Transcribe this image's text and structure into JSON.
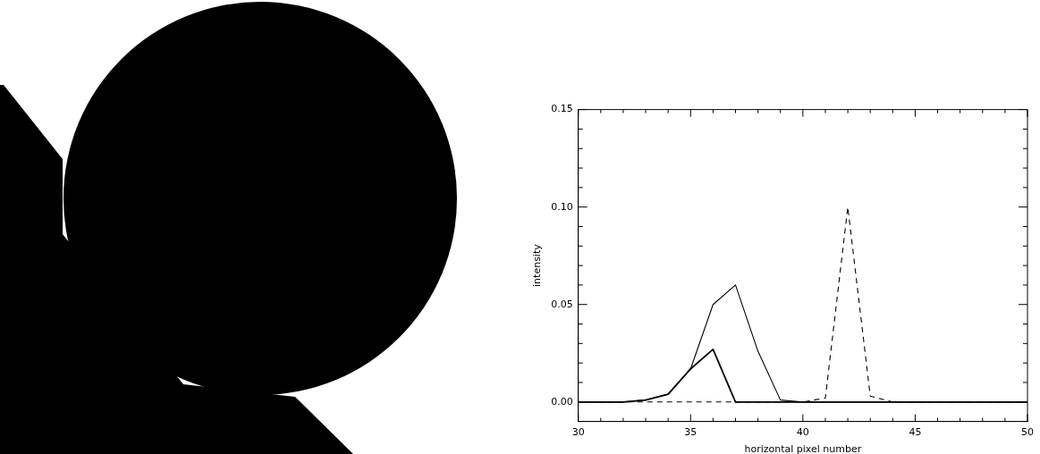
{
  "chart_data": {
    "type": "line",
    "xlabel": "horizontal pixel number",
    "ylabel": "intensity",
    "x": [
      30,
      31,
      32,
      33,
      34,
      35,
      36,
      37,
      38,
      39,
      40,
      41,
      42,
      43,
      44,
      45,
      46,
      47,
      48,
      49,
      50
    ],
    "series": [
      {
        "color": "#000000",
        "line_style": "solid",
        "values": [
          0,
          0,
          0,
          0.001,
          0.004,
          0.017,
          0.05,
          0.06,
          0.026,
          0.001,
          0,
          0,
          0,
          0,
          0,
          0,
          0,
          0,
          0,
          0,
          0
        ]
      },
      {
        "color": "#000000",
        "line_style": "solid",
        "values": [
          0,
          0,
          0,
          0.001,
          0.004,
          0.017,
          0.027,
          0,
          0,
          0,
          0,
          0,
          0,
          0,
          0,
          0,
          0,
          0,
          0,
          0,
          0
        ]
      },
      {
        "color": "#000000",
        "line_style": "dashed",
        "values": [
          0,
          0,
          0,
          0,
          0,
          0,
          0,
          0,
          0,
          0,
          0,
          0.002,
          0.1,
          0.003,
          0,
          0,
          0,
          0,
          0,
          0,
          0
        ]
      }
    ],
    "xlim": [
      30,
      50
    ],
    "ylim": [
      -0.01,
      0.15
    ],
    "xticks": [
      30,
      {
        "value": 31,
        "label": null
      },
      {
        "value": 32,
        "label": null
      },
      {
        "value": 33,
        "label": null
      },
      {
        "value": 34,
        "label": null
      },
      35,
      {
        "value": 36,
        "label": null
      },
      {
        "value": 37,
        "label": null
      },
      {
        "value": 38,
        "label": null
      },
      {
        "value": 39,
        "label": null
      },
      40,
      {
        "value": 41,
        "label": null
      },
      {
        "value": 42,
        "label": null
      },
      {
        "value": 43,
        "label": null
      },
      {
        "value": 44,
        "label": null
      },
      45,
      {
        "value": 46,
        "label": null
      },
      {
        "value": 47,
        "label": null
      },
      {
        "value": 48,
        "label": null
      },
      {
        "value": 49,
        "label": null
      },
      50
    ],
    "yticks": [
      {
        "value": -0.01,
        "label": null
      },
      {
        "value": 0,
        "label": "0.00"
      },
      {
        "value": 0.01,
        "label": null
      },
      {
        "value": 0.02,
        "label": null
      },
      {
        "value": 0.03,
        "label": null
      },
      {
        "value": 0.04,
        "label": null
      },
      {
        "value": 0.05,
        "label": "0.05"
      },
      {
        "value": 0.06,
        "label": null
      },
      {
        "value": 0.07,
        "label": null
      },
      {
        "value": 0.08,
        "label": null
      },
      {
        "value": 0.09,
        "label": null
      },
      {
        "value": 0.1,
        "label": "0.10"
      },
      {
        "value": 0.11,
        "label": null
      },
      {
        "value": 0.12,
        "label": null
      },
      {
        "value": 0.13,
        "label": null
      },
      {
        "value": 0.14,
        "label": null
      },
      {
        "value": 0.15,
        "label": "0.15"
      }
    ],
    "grid": false,
    "legend": false,
    "marker": "none"
  }
}
